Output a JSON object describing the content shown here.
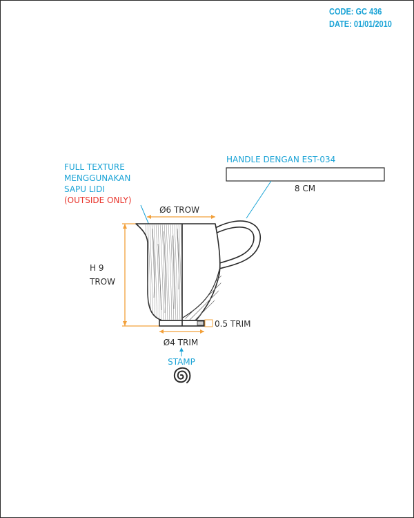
{
  "header": {
    "code": "CODE: GC 436",
    "date": "DATE: 01/01/2010"
  },
  "annotations": {
    "texture": [
      "FULL TEXTURE",
      "MENGGUNAKAN",
      "SAPU LIDI"
    ],
    "texture_note": "(OUTSIDE ONLY)",
    "handle": "HANDLE DENGAN EST-034",
    "handle_length": "8 CM",
    "top_diameter": "Ø6 TROW",
    "height_line1": "H 9",
    "height_line2": "TROW",
    "foot_height": "0.5 TRIM",
    "foot_diameter": "Ø4 TRIM",
    "stamp": "STAMP"
  },
  "colors": {
    "accent": "#1aa3d6",
    "note_red": "#e8332a",
    "dimension": "#f2a03a",
    "outline": "#2a2a2a"
  }
}
